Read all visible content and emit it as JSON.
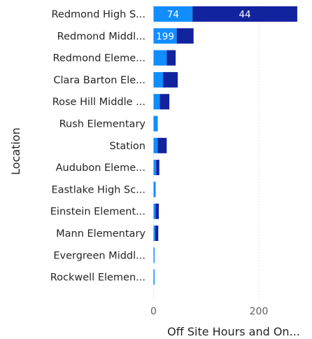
{
  "chart_data": {
    "type": "bar",
    "orientation": "horizontal",
    "stacked": true,
    "categories": [
      "Redmond High S...",
      "Redmond Middl...",
      "Redmond Eleme...",
      "Clara Barton Ele...",
      "Rose Hill Middle ...",
      "Rush Elementary",
      "Station",
      "Audubon Eleme...",
      "Eastlake High Sc...",
      "Einstein Element...",
      "Mann Elementary",
      "Evergreen Middl...",
      "Rockwell Elemen..."
    ],
    "series": [
      {
        "values": [
          74,
          44,
          25,
          18,
          12,
          8,
          8,
          5,
          4,
          4,
          3,
          2,
          2
        ],
        "color": "#118dff"
      },
      {
        "values": [
          199,
          32,
          17,
          28,
          18,
          0,
          17,
          6,
          0,
          6,
          6,
          0,
          0
        ],
        "color": "#12239e"
      }
    ],
    "data_labels": [
      [
        "74",
        "199"
      ],
      [
        "44",
        null
      ]
    ],
    "xlabel": "Off Site Hours and On...",
    "ylabel": "Location",
    "xlim": [
      0,
      280
    ],
    "xticks": [
      0,
      200
    ],
    "grid": true
  }
}
